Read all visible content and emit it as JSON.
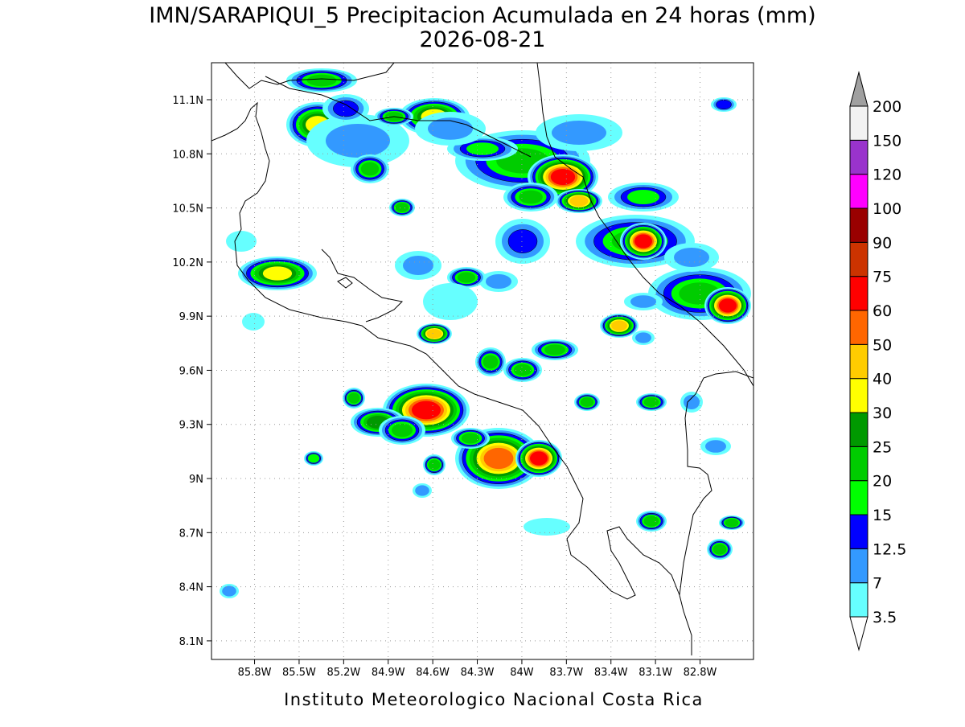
{
  "map": {
    "title": "IMN/SARAPIQUI_5 Precipitacion Acumulada en 24 horas (mm)",
    "subtitle": "2026-08-21",
    "footer": "Instituto Meteorologico Nacional Costa Rica",
    "xlim": [
      -86.09,
      -82.44
    ],
    "ylim": [
      7.997,
      11.305
    ],
    "xticks": [
      {
        "value": -85.8,
        "label": "85.8W"
      },
      {
        "value": -85.5,
        "label": "85.5W"
      },
      {
        "value": -85.2,
        "label": "85.2W"
      },
      {
        "value": -84.9,
        "label": "84.9W"
      },
      {
        "value": -84.6,
        "label": "84.6W"
      },
      {
        "value": -84.3,
        "label": "84.3W"
      },
      {
        "value": -84,
        "label": "84W"
      },
      {
        "value": -83.7,
        "label": "83.7W"
      },
      {
        "value": -83.4,
        "label": "83.4W"
      },
      {
        "value": -83.1,
        "label": "83.1W"
      },
      {
        "value": -82.8,
        "label": "82.8W"
      }
    ],
    "yticks": [
      {
        "value": 8.1,
        "label": "8.1N"
      },
      {
        "value": 8.4,
        "label": "8.4N"
      },
      {
        "value": 8.7,
        "label": "8.7N"
      },
      {
        "value": 9,
        "label": "9N"
      },
      {
        "value": 9.3,
        "label": "9.3N"
      },
      {
        "value": 9.6,
        "label": "9.6N"
      },
      {
        "value": 9.9,
        "label": "9.9N"
      },
      {
        "value": 10.2,
        "label": "10.2N"
      },
      {
        "value": 10.5,
        "label": "10.5N"
      },
      {
        "value": 10.8,
        "label": "10.8N"
      },
      {
        "value": 11.1,
        "label": "11.1N"
      }
    ],
    "grid": true,
    "colorbar": {
      "levels": [
        3.5,
        7,
        12.5,
        15,
        20,
        25,
        30,
        40,
        50,
        60,
        75,
        90,
        100,
        120,
        150,
        200
      ],
      "colors": [
        "#ffffff",
        "#66ffff",
        "#3399ff",
        "#0000ff",
        "#00ff00",
        "#00cc00",
        "#009900",
        "#ffff00",
        "#ffcc00",
        "#ff6600",
        "#ff0000",
        "#cc3300",
        "#990000",
        "#ff00ff",
        "#9933cc",
        "#f2f2f2",
        "#a0a0a0"
      ]
    }
  }
}
